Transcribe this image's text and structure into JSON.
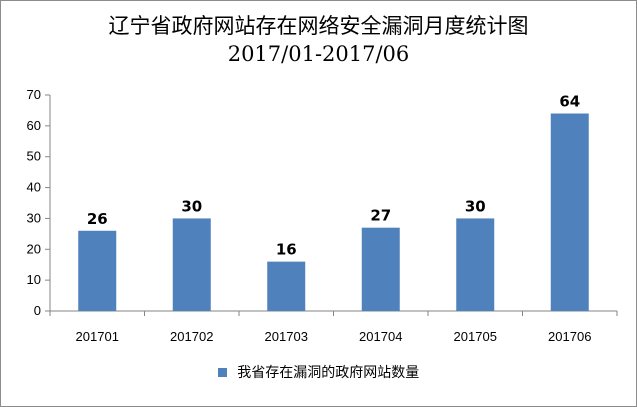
{
  "chart_data": {
    "type": "bar",
    "title": "辽宁省政府网站存在网络安全漏洞月度统计图",
    "subtitle": "2017/01-2017/06",
    "categories": [
      "201701",
      "201702",
      "201703",
      "201704",
      "201705",
      "201706"
    ],
    "series": [
      {
        "name": "我省存在漏洞的政府网站数量",
        "values": [
          26,
          30,
          16,
          27,
          30,
          64
        ],
        "color": "#4f81bd"
      }
    ],
    "ylim": [
      0,
      70
    ],
    "yticks": [
      0,
      10,
      20,
      30,
      40,
      50,
      60,
      70
    ],
    "grid": false,
    "data_labels": true,
    "legend_position": "bottom"
  }
}
